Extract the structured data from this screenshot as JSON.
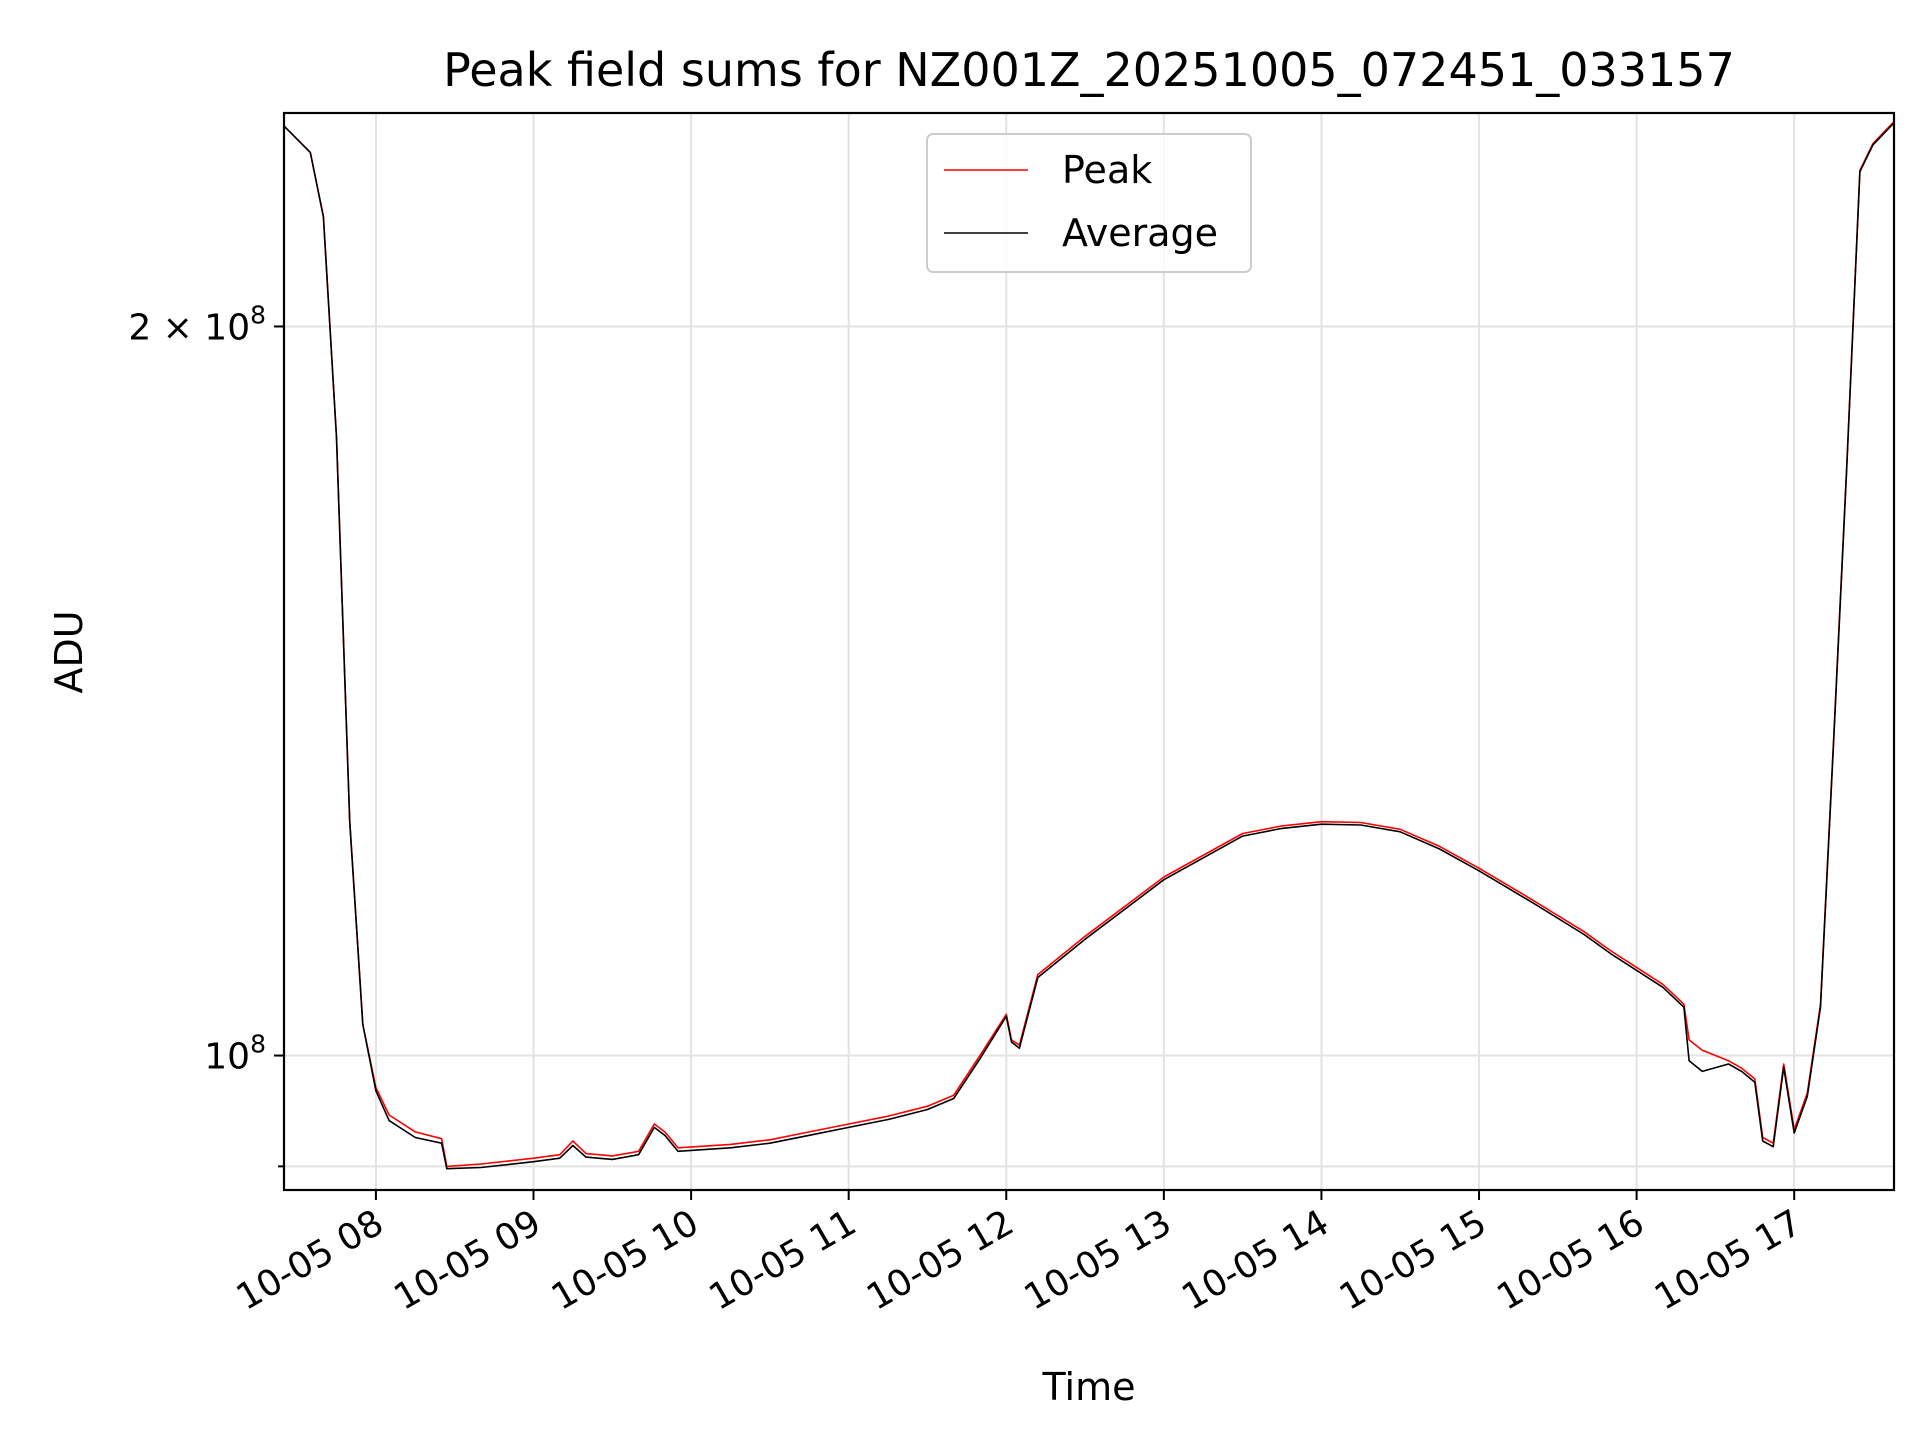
{
  "chart_data": {
    "type": "line",
    "title": "Peak field sums for NZ001Z_20251005_072451_033157",
    "xlabel": "Time",
    "ylabel": "ADU",
    "y_scale": "log",
    "grid": true,
    "legend_position": "upper center",
    "x_tick_labels": [
      "10-05 08",
      "10-05 09",
      "10-05 10",
      "10-05 11",
      "10-05 12",
      "10-05 13",
      "10-05 14",
      "10-05 15",
      "10-05 16",
      "10-05 17"
    ],
    "y_tick_labels": [
      {
        "text": "2 × 10⁸",
        "base": "2 × 10",
        "exp": "8",
        "value": 200000000
      },
      {
        "text": "10⁸",
        "base": "10",
        "exp": "8",
        "value": 100000000
      }
    ],
    "xlim": [
      "2025-10-05 07:25",
      "2025-10-05 17:38"
    ],
    "ylim": [
      88000000,
      245000000
    ],
    "series": [
      {
        "name": "Peak",
        "color": "#ff0000",
        "points": [
          [
            "2025-10-05 07:25",
            242000000
          ],
          [
            "2025-10-05 07:35",
            236000000
          ],
          [
            "2025-10-05 07:40",
            222000000
          ],
          [
            "2025-10-05 07:45",
            180000000
          ],
          [
            "2025-10-05 07:50",
            125000000
          ],
          [
            "2025-10-05 07:55",
            103000000
          ],
          [
            "2025-10-05 08:00",
            97000000
          ],
          [
            "2025-10-05 08:05",
            94500000
          ],
          [
            "2025-10-05 08:15",
            93000000
          ],
          [
            "2025-10-05 08:25",
            92400000
          ],
          [
            "2025-10-05 08:27",
            90000000
          ],
          [
            "2025-10-05 08:40",
            90200000
          ],
          [
            "2025-10-05 09:00",
            90700000
          ],
          [
            "2025-10-05 09:10",
            91000000
          ],
          [
            "2025-10-05 09:15",
            92200000
          ],
          [
            "2025-10-05 09:20",
            91100000
          ],
          [
            "2025-10-05 09:30",
            90900000
          ],
          [
            "2025-10-05 09:40",
            91300000
          ],
          [
            "2025-10-05 09:46",
            93700000
          ],
          [
            "2025-10-05 09:50",
            93000000
          ],
          [
            "2025-10-05 09:55",
            91600000
          ],
          [
            "2025-10-05 10:15",
            91900000
          ],
          [
            "2025-10-05 10:30",
            92300000
          ],
          [
            "2025-10-05 10:45",
            93000000
          ],
          [
            "2025-10-05 11:00",
            93700000
          ],
          [
            "2025-10-05 11:15",
            94400000
          ],
          [
            "2025-10-05 11:30",
            95300000
          ],
          [
            "2025-10-05 11:40",
            96300000
          ],
          [
            "2025-10-05 11:50",
            100000000
          ],
          [
            "2025-10-05 12:00",
            104000000
          ],
          [
            "2025-10-05 12:02",
            101500000
          ],
          [
            "2025-10-05 12:05",
            101000000
          ],
          [
            "2025-10-05 12:12",
            108000000
          ],
          [
            "2025-10-05 12:30",
            112000000
          ],
          [
            "2025-10-05 13:00",
            118500000
          ],
          [
            "2025-10-05 13:30",
            123500000
          ],
          [
            "2025-10-05 13:45",
            124400000
          ],
          [
            "2025-10-05 14:00",
            124900000
          ],
          [
            "2025-10-05 14:15",
            124800000
          ],
          [
            "2025-10-05 14:30",
            124000000
          ],
          [
            "2025-10-05 14:45",
            122000000
          ],
          [
            "2025-10-05 15:00",
            119500000
          ],
          [
            "2025-10-05 15:20",
            116000000
          ],
          [
            "2025-10-05 15:40",
            112500000
          ],
          [
            "2025-10-05 15:50",
            110500000
          ],
          [
            "2025-10-05 16:10",
            107000000
          ],
          [
            "2025-10-05 16:18",
            105000000
          ],
          [
            "2025-10-05 16:20",
            101500000
          ],
          [
            "2025-10-05 16:25",
            100500000
          ],
          [
            "2025-10-05 16:35",
            99500000
          ],
          [
            "2025-10-05 16:40",
            98800000
          ],
          [
            "2025-10-05 16:45",
            97800000
          ],
          [
            "2025-10-05 16:48",
            92500000
          ],
          [
            "2025-10-05 16:52",
            92000000
          ],
          [
            "2025-10-05 16:56",
            99200000
          ],
          [
            "2025-10-05 17:00",
            93200000
          ],
          [
            "2025-10-05 17:05",
            96500000
          ],
          [
            "2025-10-05 17:10",
            105000000
          ],
          [
            "2025-10-05 17:15",
            135000000
          ],
          [
            "2025-10-05 17:20",
            175000000
          ],
          [
            "2025-10-05 17:25",
            232000000
          ],
          [
            "2025-10-05 17:30",
            238000000
          ],
          [
            "2025-10-05 17:38",
            243000000
          ]
        ]
      },
      {
        "name": "Average",
        "color": "#000000",
        "points": [
          [
            "2025-10-05 07:25",
            242000000
          ],
          [
            "2025-10-05 07:35",
            236000000
          ],
          [
            "2025-10-05 07:40",
            222000000
          ],
          [
            "2025-10-05 07:45",
            180000000
          ],
          [
            "2025-10-05 07:50",
            125000000
          ],
          [
            "2025-10-05 07:55",
            103000000
          ],
          [
            "2025-10-05 08:00",
            96700000
          ],
          [
            "2025-10-05 08:05",
            94000000
          ],
          [
            "2025-10-05 08:15",
            92500000
          ],
          [
            "2025-10-05 08:25",
            92000000
          ],
          [
            "2025-10-05 08:27",
            89800000
          ],
          [
            "2025-10-05 08:40",
            89900000
          ],
          [
            "2025-10-05 09:00",
            90400000
          ],
          [
            "2025-10-05 09:10",
            90700000
          ],
          [
            "2025-10-05 09:15",
            91800000
          ],
          [
            "2025-10-05 09:20",
            90800000
          ],
          [
            "2025-10-05 09:30",
            90600000
          ],
          [
            "2025-10-05 09:40",
            91000000
          ],
          [
            "2025-10-05 09:46",
            93400000
          ],
          [
            "2025-10-05 09:50",
            92700000
          ],
          [
            "2025-10-05 09:55",
            91300000
          ],
          [
            "2025-10-05 10:15",
            91600000
          ],
          [
            "2025-10-05 10:30",
            92000000
          ],
          [
            "2025-10-05 10:45",
            92700000
          ],
          [
            "2025-10-05 11:00",
            93400000
          ],
          [
            "2025-10-05 11:15",
            94100000
          ],
          [
            "2025-10-05 11:30",
            95000000
          ],
          [
            "2025-10-05 11:40",
            96000000
          ],
          [
            "2025-10-05 11:50",
            99700000
          ],
          [
            "2025-10-05 12:00",
            103800000
          ],
          [
            "2025-10-05 12:02",
            101300000
          ],
          [
            "2025-10-05 12:05",
            100700000
          ],
          [
            "2025-10-05 12:12",
            107700000
          ],
          [
            "2025-10-05 12:30",
            111700000
          ],
          [
            "2025-10-05 13:00",
            118200000
          ],
          [
            "2025-10-05 13:30",
            123200000
          ],
          [
            "2025-10-05 13:45",
            124100000
          ],
          [
            "2025-10-05 14:00",
            124600000
          ],
          [
            "2025-10-05 14:15",
            124500000
          ],
          [
            "2025-10-05 14:30",
            123700000
          ],
          [
            "2025-10-05 14:45",
            121700000
          ],
          [
            "2025-10-05 15:00",
            119200000
          ],
          [
            "2025-10-05 15:20",
            115700000
          ],
          [
            "2025-10-05 15:40",
            112200000
          ],
          [
            "2025-10-05 15:50",
            110200000
          ],
          [
            "2025-10-05 16:10",
            106700000
          ],
          [
            "2025-10-05 16:18",
            104700000
          ],
          [
            "2025-10-05 16:20",
            99500000
          ],
          [
            "2025-10-05 16:25",
            98500000
          ],
          [
            "2025-10-05 16:35",
            99200000
          ],
          [
            "2025-10-05 16:40",
            98500000
          ],
          [
            "2025-10-05 16:45",
            97500000
          ],
          [
            "2025-10-05 16:48",
            92200000
          ],
          [
            "2025-10-05 16:52",
            91700000
          ],
          [
            "2025-10-05 16:56",
            98900000
          ],
          [
            "2025-10-05 17:00",
            92900000
          ],
          [
            "2025-10-05 17:05",
            96200000
          ],
          [
            "2025-10-05 17:10",
            104700000
          ],
          [
            "2025-10-05 17:15",
            134700000
          ],
          [
            "2025-10-05 17:20",
            174700000
          ],
          [
            "2025-10-05 17:25",
            231700000
          ],
          [
            "2025-10-05 17:30",
            237700000
          ],
          [
            "2025-10-05 17:38",
            242700000
          ]
        ]
      }
    ]
  }
}
